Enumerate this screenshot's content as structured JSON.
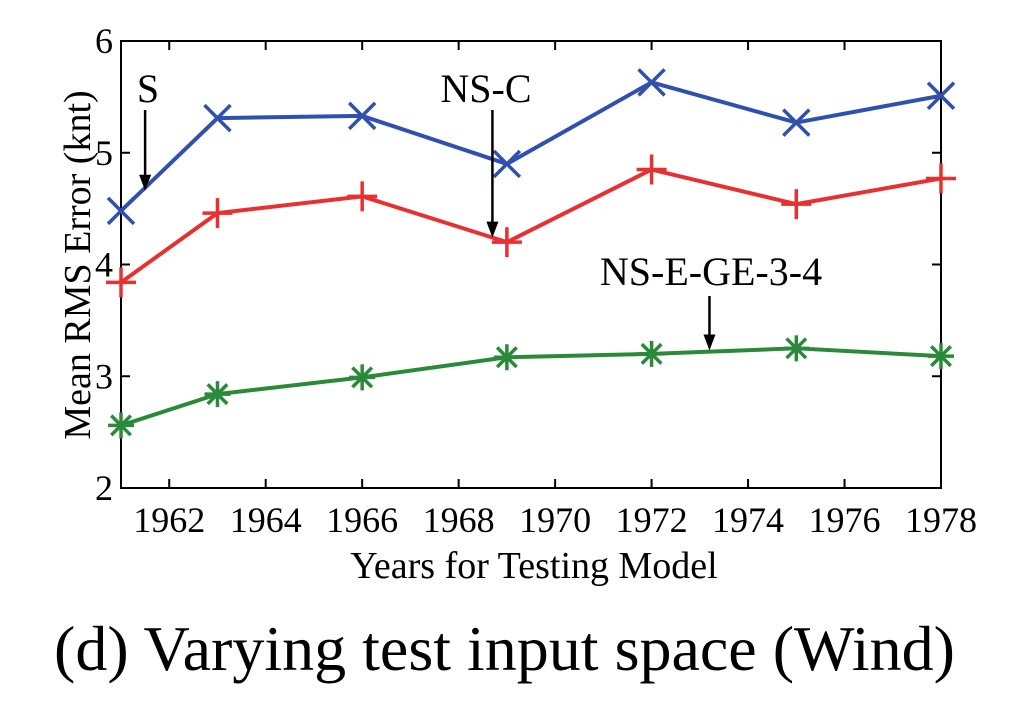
{
  "chart_data": {
    "type": "line",
    "title": "",
    "xlabel": "Years for Testing Model",
    "ylabel": "Mean RMS Error (knt)",
    "xlim": [
      1961,
      1978
    ],
    "ylim": [
      2,
      6
    ],
    "xticks": [
      1962,
      1964,
      1966,
      1968,
      1970,
      1972,
      1974,
      1976,
      1978
    ],
    "yticks": [
      2,
      3,
      4,
      5,
      6
    ],
    "grid": false,
    "legend": "none",
    "x": [
      1961,
      1963,
      1966,
      1969,
      1972,
      1975,
      1978
    ],
    "series": [
      {
        "name": "S",
        "color": "#3050b0",
        "marker": "x",
        "values": [
          4.48,
          5.31,
          5.33,
          4.9,
          5.63,
          5.27,
          5.51
        ]
      },
      {
        "name": "NS-C",
        "color": "#e83030",
        "marker": "plus",
        "values": [
          3.84,
          4.46,
          4.61,
          4.2,
          4.85,
          4.54,
          4.77
        ]
      },
      {
        "name": "NS-E-GE-3-4",
        "color": "#2a8a3a",
        "marker": "asterisk",
        "values": [
          2.56,
          2.84,
          2.99,
          3.17,
          3.2,
          3.25,
          3.18
        ]
      }
    ],
    "annotations": [
      {
        "text": "S",
        "tip": [
          1961.5,
          4.66
        ]
      },
      {
        "text": "NS-C",
        "tip": [
          1968.7,
          4.24
        ]
      },
      {
        "text": "NS-E-GE-3-4",
        "tip": [
          1973.2,
          3.23
        ]
      }
    ]
  },
  "caption": "(d) Varying test input space (Wind)"
}
